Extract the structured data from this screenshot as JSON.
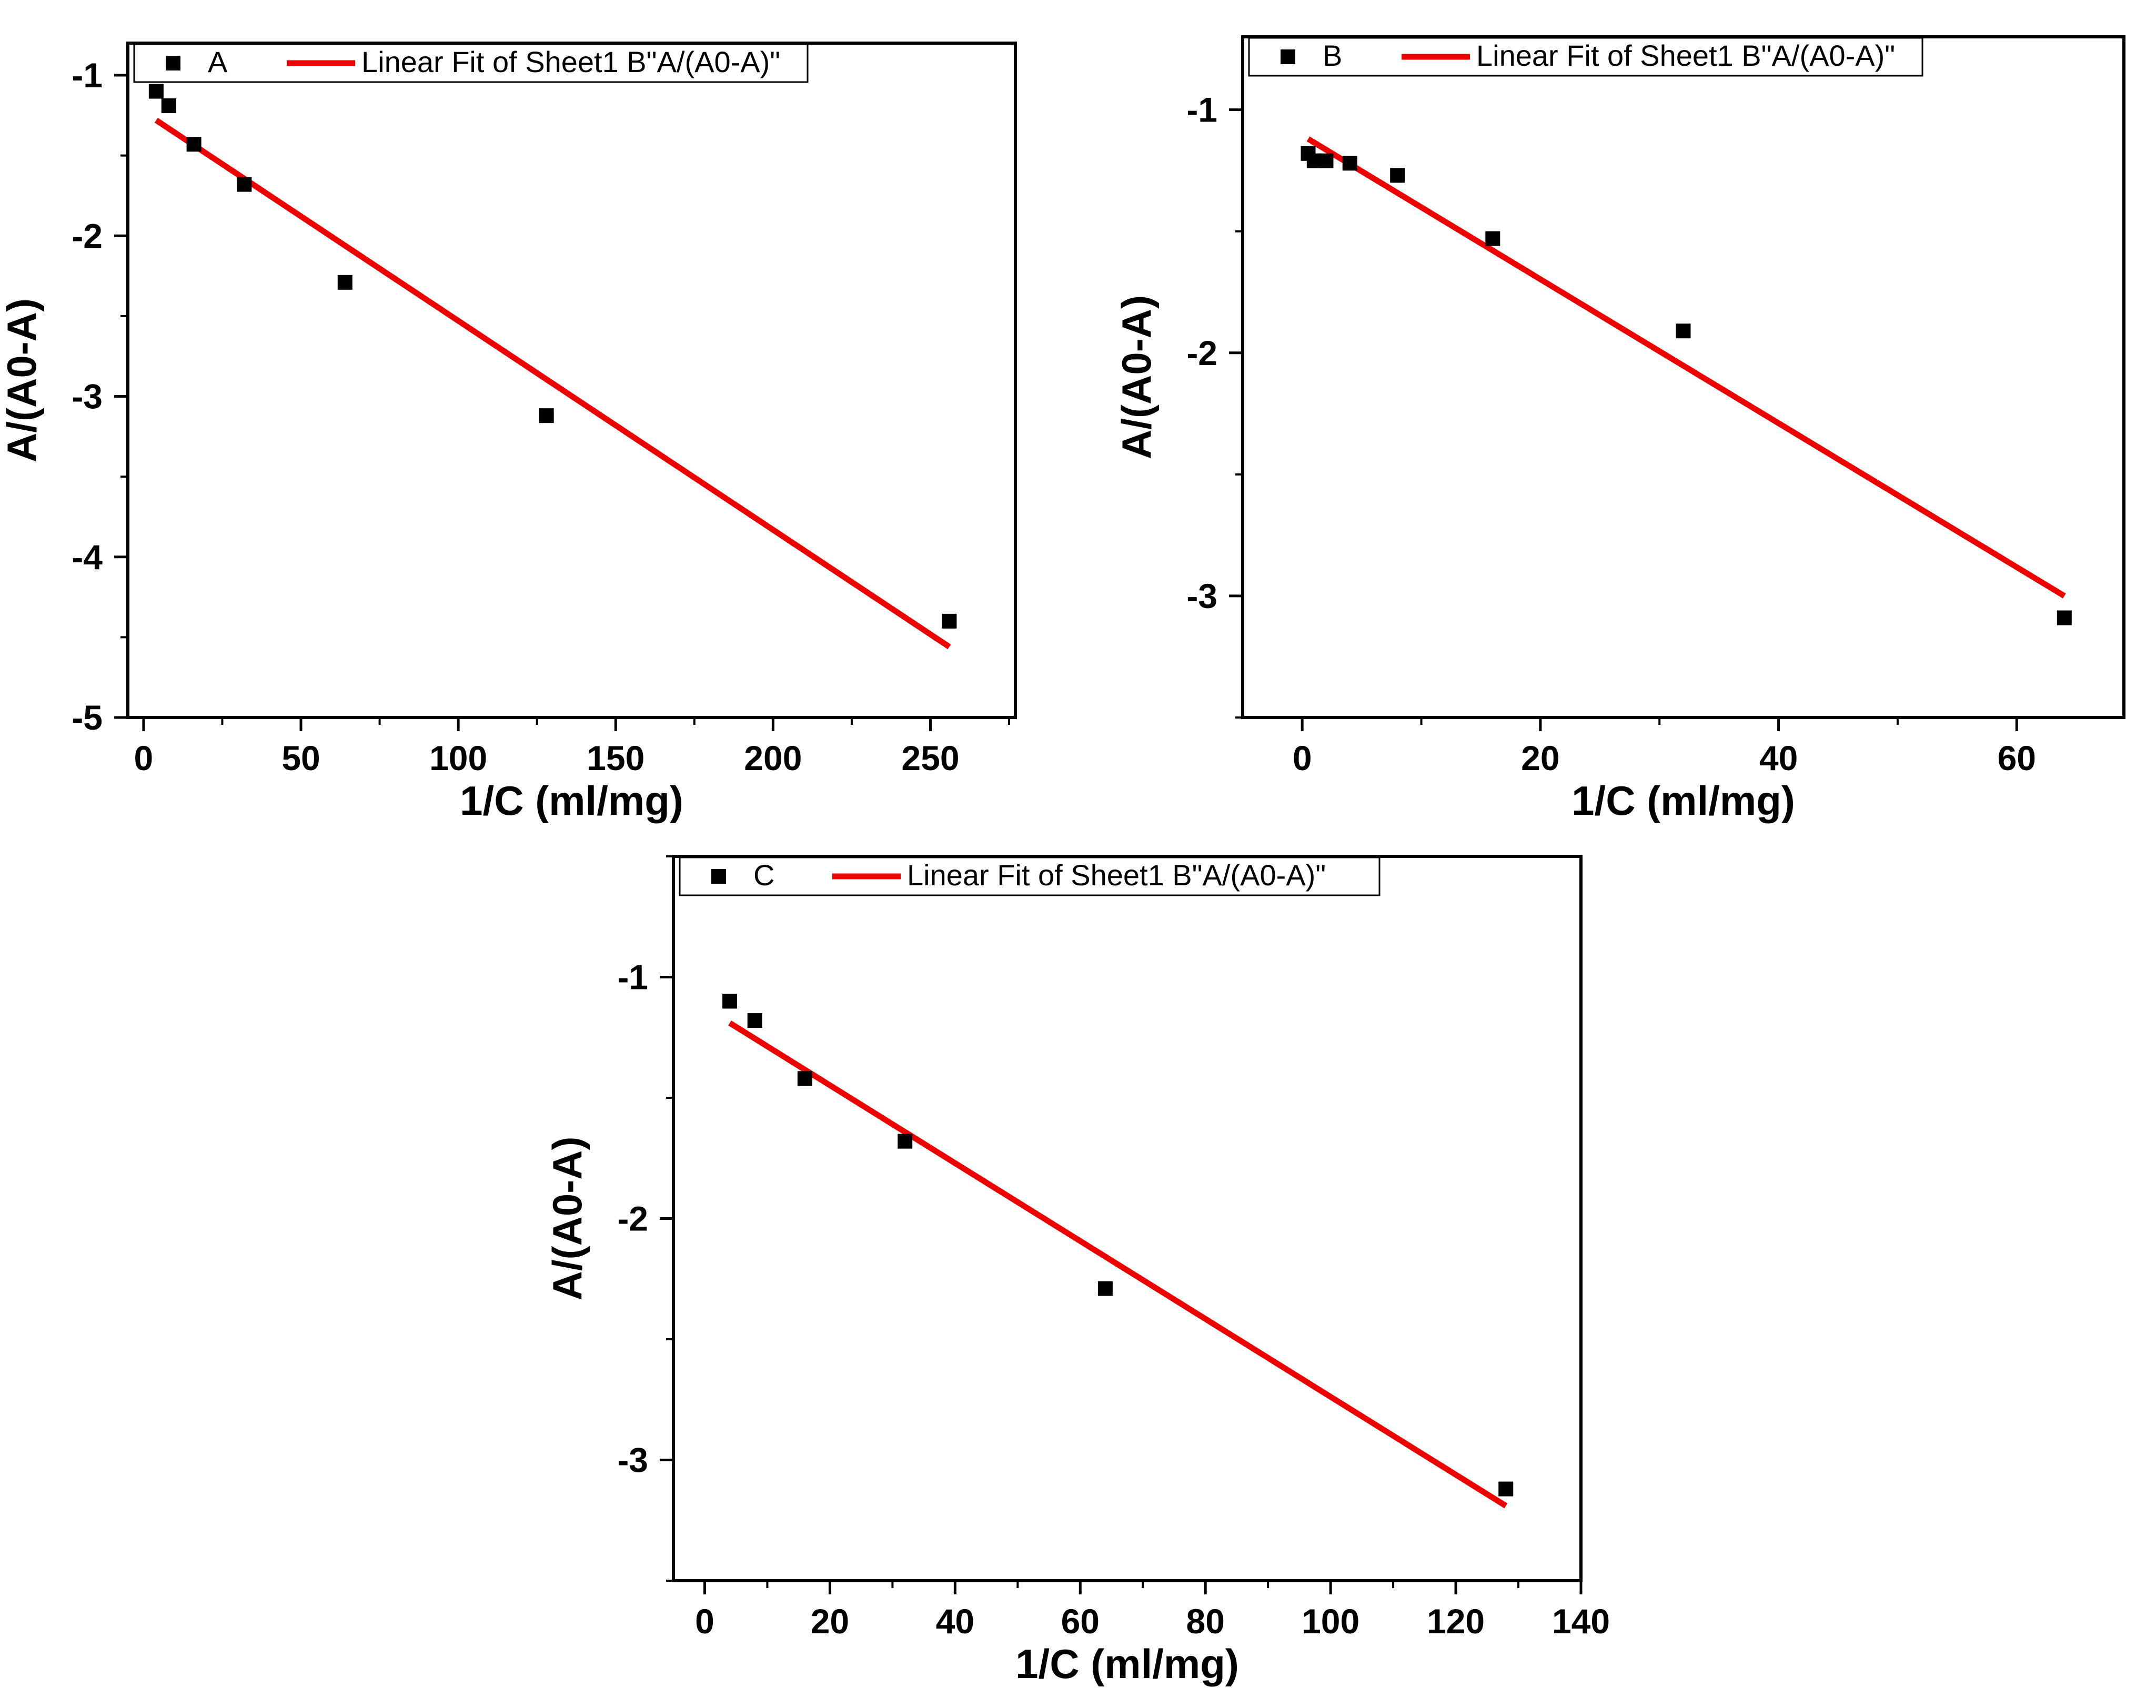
{
  "figure": {
    "background": "#ffffff",
    "axis_color": "#000000",
    "marker_color": "#000000",
    "fit_color": "#ee0000"
  },
  "chart_data": [
    {
      "id": "A",
      "type": "scatter",
      "title": "",
      "xlabel": "1/C (ml/mg)",
      "ylabel": "A/(A0-A)",
      "xlim": [
        -5,
        277
      ],
      "ylim": [
        -5,
        -0.8
      ],
      "xticks": [
        0,
        50,
        100,
        150,
        200,
        250
      ],
      "xtick_labels": [
        "0",
        "50",
        "100",
        "150",
        "200",
        "250"
      ],
      "xminor_step": 25,
      "yticks": [
        -5,
        -4,
        -3,
        -2,
        -1
      ],
      "ytick_labels": [
        "-5",
        "-4",
        "-3",
        "-2",
        "-1"
      ],
      "yminor_step": 0.5,
      "grid": false,
      "legend_position": "top-left",
      "series": [
        {
          "name": "A",
          "kind": "scatter",
          "x": [
            4,
            8,
            16,
            32,
            64,
            128,
            256
          ],
          "y": [
            -1.1,
            -1.19,
            -1.43,
            -1.68,
            -2.29,
            -3.12,
            -4.4
          ]
        },
        {
          "name": "Linear Fit of Sheet1 B\"A/(A0-A)\"",
          "kind": "line",
          "x": [
            4,
            256
          ],
          "y": [
            -1.28,
            -4.56
          ]
        }
      ]
    },
    {
      "id": "B",
      "type": "scatter",
      "title": "",
      "xlabel": "1/C (ml/mg)",
      "ylabel": "A/(A0-A)",
      "xlim": [
        -5,
        69
      ],
      "ylim": [
        -3.5,
        -0.7
      ],
      "xticks": [
        0,
        20,
        40,
        60
      ],
      "xtick_labels": [
        "0",
        "20",
        "40",
        "60"
      ],
      "xminor_step": 10,
      "yticks": [
        -3,
        -2,
        -1
      ],
      "ytick_labels": [
        "-3",
        "-2",
        "-1"
      ],
      "yminor_step": 0.5,
      "grid": false,
      "legend_position": "top-left",
      "series": [
        {
          "name": "B",
          "kind": "scatter",
          "x": [
            0.5,
            1,
            2,
            4,
            8,
            16,
            32,
            64
          ],
          "y": [
            -1.18,
            -1.21,
            -1.21,
            -1.22,
            -1.27,
            -1.53,
            -1.91,
            -3.09
          ]
        },
        {
          "name": "Linear Fit of Sheet1 B\"A/(A0-A)\"",
          "kind": "line",
          "x": [
            0.5,
            64
          ],
          "y": [
            -1.12,
            -3.0
          ]
        }
      ]
    },
    {
      "id": "C",
      "type": "scatter",
      "title": "",
      "xlabel": "1/C (ml/mg)",
      "ylabel": "A/(A0-A)",
      "xlim": [
        -5,
        140
      ],
      "ylim": [
        -3.5,
        -0.5
      ],
      "xticks": [
        0,
        20,
        40,
        60,
        80,
        100,
        120,
        140
      ],
      "xtick_labels": [
        "0",
        "20",
        "40",
        "60",
        "80",
        "100",
        "120",
        "140"
      ],
      "xminor_step": 10,
      "yticks": [
        -3,
        -2,
        -1
      ],
      "ytick_labels": [
        "-3",
        "-2",
        "-1"
      ],
      "yminor_step": 0.5,
      "grid": false,
      "legend_position": "top-left",
      "series": [
        {
          "name": "C",
          "kind": "scatter",
          "x": [
            4,
            8,
            16,
            32,
            64,
            128
          ],
          "y": [
            -1.1,
            -1.18,
            -1.42,
            -1.68,
            -2.29,
            -3.12
          ]
        },
        {
          "name": "Linear Fit of Sheet1 B\"A/(A0-A)\"",
          "kind": "line",
          "x": [
            4,
            128
          ],
          "y": [
            -1.19,
            -3.19
          ]
        }
      ]
    }
  ]
}
